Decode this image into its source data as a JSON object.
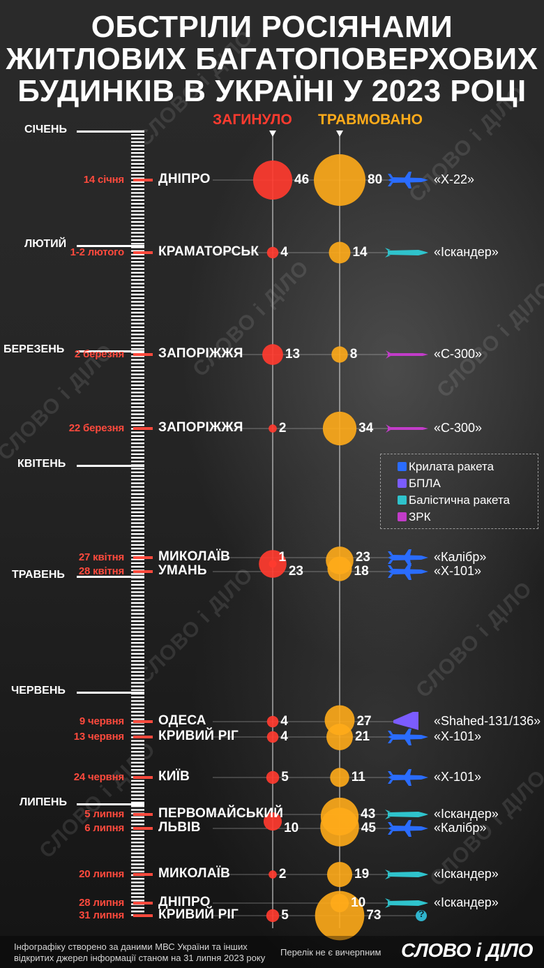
{
  "title": {
    "line1": "ОБСТРІЛИ РОСІЯНАМИ",
    "line2": "ЖИТЛОВИХ БАГАТОПОВЕРХОВИХ",
    "line3": "БУДИНКІВ В УКРАЇНІ У 2023 РОЦІ"
  },
  "columns": {
    "killed": "ЗАГИНУЛО",
    "injured": "ТРАВМОВАНО"
  },
  "colors": {
    "killed": "#ff3b2f",
    "injured": "#ffab1a",
    "date": "#ff4a3d",
    "cruise_missile": "#2a6cff",
    "drone": "#7b5cff",
    "ballistic_missile": "#2fc3cc",
    "sam": "#c23cc9"
  },
  "months": [
    {
      "label": "СІЧЕНЬ"
    },
    {
      "label": "ЛЮТИЙ"
    },
    {
      "label": "БЕРЕЗЕНЬ"
    },
    {
      "label": "КВІТЕНЬ"
    },
    {
      "label": "ТРАВЕНЬ"
    },
    {
      "label": "ЧЕРВЕНЬ"
    },
    {
      "label": "ЛИПЕНЬ"
    }
  ],
  "events": [
    {
      "date": "14 січня",
      "city": "ДНІПРО",
      "killed": 46,
      "injured": 80,
      "weapon": "«Х-22»",
      "weapon_type": "cruise_missile"
    },
    {
      "date": "1-2 лютого",
      "city": "КРАМАТОРСЬК",
      "killed": 4,
      "injured": 14,
      "weapon": "«Іскандер»",
      "weapon_type": "ballistic_missile"
    },
    {
      "date": "2 березня",
      "city": "ЗАПОРІЖЖЯ",
      "killed": 13,
      "injured": 8,
      "weapon": "«С-300»",
      "weapon_type": "sam"
    },
    {
      "date": "22 березня",
      "city": "ЗАПОРІЖЖЯ",
      "killed": 2,
      "injured": 34,
      "weapon": "«С-300»",
      "weapon_type": "sam"
    },
    {
      "date": "27 квітня",
      "city": "МИКОЛАЇВ",
      "killed": 1,
      "injured": 23,
      "weapon": "«Калібр»",
      "weapon_type": "cruise_missile"
    },
    {
      "date": "28 квітня",
      "city": "УМАНЬ",
      "killed": 23,
      "injured": 18,
      "weapon": "«Х-101»",
      "weapon_type": "cruise_missile"
    },
    {
      "date": "9 червня",
      "city": "ОДЕСА",
      "killed": 4,
      "injured": 27,
      "weapon": "«Shahed-131/136»",
      "weapon_type": "drone"
    },
    {
      "date": "13 червня",
      "city": "КРИВИЙ РІГ",
      "killed": 4,
      "injured": 21,
      "weapon": "«Х-101»",
      "weapon_type": "cruise_missile"
    },
    {
      "date": "24 червня",
      "city": "КИЇВ",
      "killed": 5,
      "injured": 11,
      "weapon": "«Х-101»",
      "weapon_type": "cruise_missile"
    },
    {
      "date": "5 липня",
      "city": "ПЕРВОМАЙСЬКИЙ",
      "killed": null,
      "injured": 43,
      "weapon": "«Іскандер»",
      "weapon_type": "ballistic_missile"
    },
    {
      "date": "6 липня",
      "city": "ЛЬВІВ",
      "killed": 10,
      "injured": 45,
      "weapon": "«Калібр»",
      "weapon_type": "cruise_missile"
    },
    {
      "date": "20 липня",
      "city": "МИКОЛАЇВ",
      "killed": 2,
      "injured": 19,
      "weapon": "«Іскандер»",
      "weapon_type": "ballistic_missile"
    },
    {
      "date": "28 липня",
      "city": "ДНІПРО",
      "killed": null,
      "injured": 10,
      "weapon": "«Іскандер»",
      "weapon_type": "ballistic_missile"
    },
    {
      "date": "31 липня",
      "city": "КРИВИЙ РІГ",
      "killed": 5,
      "injured": 73,
      "weapon": "",
      "weapon_type": "unknown"
    }
  ],
  "legend": [
    {
      "label": "Крилата ракета",
      "color": "#2a6cff"
    },
    {
      "label": "БПЛА",
      "color": "#7b5cff"
    },
    {
      "label": "Балістична ракета",
      "color": "#2fc3cc"
    },
    {
      "label": "ЗРК",
      "color": "#c23cc9"
    }
  ],
  "unknown_weapon_icon": "?",
  "footer": {
    "source_line1": "Інфографіку створено за даними МВС України та інших",
    "source_line2": "відкритих джерел інформації станом на 31 липня 2023 року",
    "note": "Перелік не є вичерпним",
    "logo": "СЛОВО і ДІЛО"
  },
  "watermark": "СЛОВО і ДІЛО"
}
